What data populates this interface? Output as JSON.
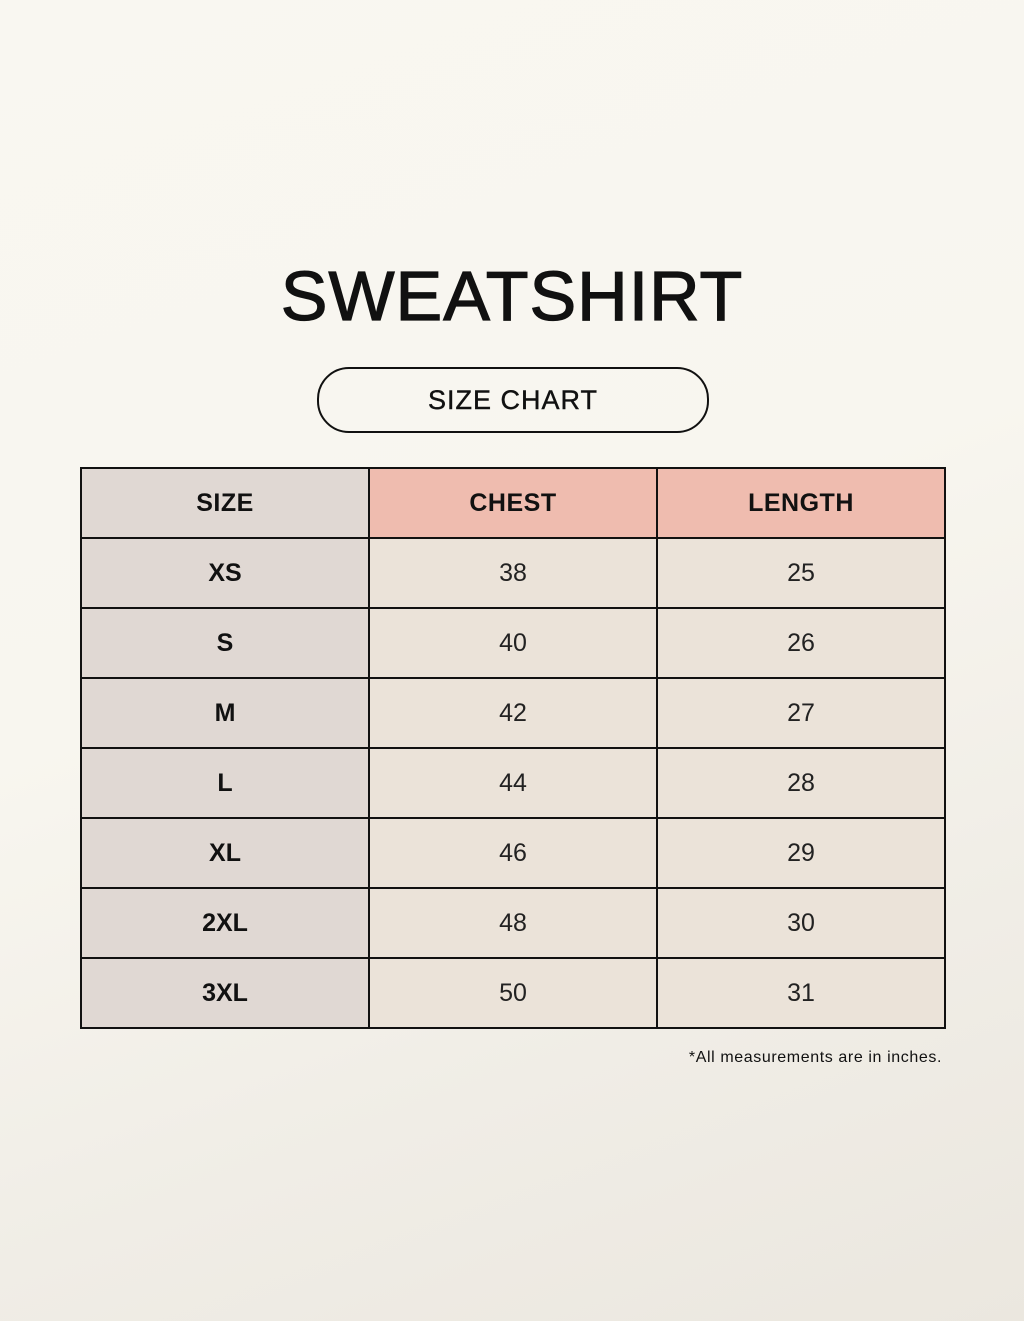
{
  "title": "SWEATSHIRT",
  "subtitle": "SIZE CHART",
  "colors": {
    "size_column": "#e0d8d3",
    "header_accent": "#efbcaf",
    "value_cell": "#ebe3d9",
    "border": "#111111"
  },
  "table": {
    "headers": [
      "SIZE",
      "CHEST",
      "LENGTH"
    ],
    "rows": [
      [
        "XS",
        "38",
        "25"
      ],
      [
        "S",
        "40",
        "26"
      ],
      [
        "M",
        "42",
        "27"
      ],
      [
        "L",
        "44",
        "28"
      ],
      [
        "XL",
        "46",
        "29"
      ],
      [
        "2XL",
        "48",
        "30"
      ],
      [
        "3XL",
        "50",
        "31"
      ]
    ]
  },
  "note": "*All measurements are in inches."
}
